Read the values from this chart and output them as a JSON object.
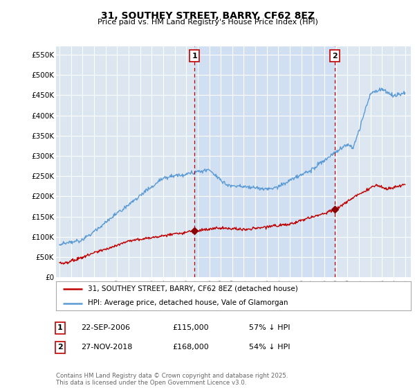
{
  "title": "31, SOUTHEY STREET, BARRY, CF62 8EZ",
  "subtitle": "Price paid vs. HM Land Registry's House Price Index (HPI)",
  "ylim": [
    0,
    570000
  ],
  "yticks": [
    0,
    50000,
    100000,
    150000,
    200000,
    250000,
    300000,
    350000,
    400000,
    450000,
    500000,
    550000
  ],
  "ytick_labels": [
    "£0",
    "£50K",
    "£100K",
    "£150K",
    "£200K",
    "£250K",
    "£300K",
    "£350K",
    "£400K",
    "£450K",
    "£500K",
    "£550K"
  ],
  "bg_color": "#dce6f1",
  "line_color_hpi": "#5b9bd5",
  "fill_color_hpi": "#dce6f1",
  "line_color_price": "#c00000",
  "marker_color": "#8b0000",
  "vline_color": "#c00000",
  "legend_label_price": "31, SOUTHEY STREET, BARRY, CF62 8EZ (detached house)",
  "legend_label_hpi": "HPI: Average price, detached house, Vale of Glamorgan",
  "annotation1_date": "22-SEP-2006",
  "annotation1_price": "£115,000",
  "annotation1_pct": "57% ↓ HPI",
  "annotation2_date": "27-NOV-2018",
  "annotation2_price": "£168,000",
  "annotation2_pct": "54% ↓ HPI",
  "footnote": "Contains HM Land Registry data © Crown copyright and database right 2025.\nThis data is licensed under the Open Government Licence v3.0.",
  "sale1_x": 2006.73,
  "sale1_y": 115000,
  "sale2_x": 2018.91,
  "sale2_y": 168000,
  "xlim_left": 1994.7,
  "xlim_right": 2025.5
}
